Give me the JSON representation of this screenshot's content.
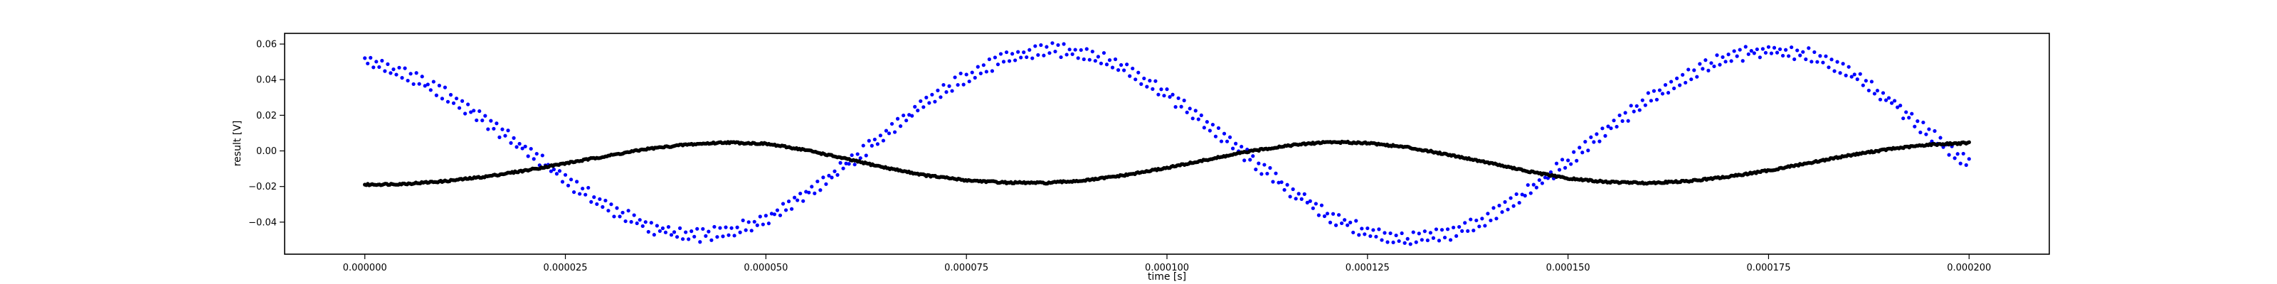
{
  "chart_data": {
    "type": "scatter",
    "title": "",
    "xlabel": "time [s]",
    "ylabel": "result [V]",
    "xlim": [
      -1e-05,
      0.00021
    ],
    "ylim": [
      -0.058,
      0.066
    ],
    "xticks": [
      "0.000000",
      "0.000025",
      "0.000050",
      "0.000075",
      "0.000100",
      "0.000125",
      "0.000150",
      "0.000175",
      "0.000200"
    ],
    "xtick_values": [
      0,
      2.5e-05,
      5e-05,
      7.5e-05,
      0.0001,
      0.000125,
      0.00015,
      0.000175,
      0.0002
    ],
    "yticks": [
      "0.06",
      "0.04",
      "0.02",
      "0.00",
      "−0.02",
      "−0.04"
    ],
    "ytick_values": [
      0.06,
      0.04,
      0.02,
      0.0,
      -0.02,
      -0.04
    ],
    "grid": false,
    "legend": "none",
    "series": [
      {
        "color": "#0000ff",
        "marker": "small dots, two interleaved bands",
        "x": [
          0,
          5e-06,
          1e-05,
          1.5e-05,
          2e-05,
          2.5e-05,
          3e-05,
          3.5e-05,
          4e-05,
          4.5e-05,
          5e-05,
          5.5e-05,
          6e-05,
          6.5e-05,
          7e-05,
          7.5e-05,
          8e-05,
          8.5e-05,
          9e-05,
          9.5e-05,
          0.0001,
          0.000105,
          0.00011,
          0.000115,
          0.00012,
          0.000125,
          0.00013,
          0.000135,
          0.00014,
          0.000145,
          0.00015,
          0.000155,
          0.00016,
          0.000165,
          0.00017,
          0.000175,
          0.00018,
          0.000185,
          0.00019,
          0.000195,
          0.0002
        ],
        "y": [
          0.051,
          0.043,
          0.032,
          0.017,
          0.001,
          -0.016,
          -0.031,
          -0.042,
          -0.048,
          -0.046,
          -0.038,
          -0.024,
          -0.008,
          0.01,
          0.027,
          0.042,
          0.052,
          0.057,
          0.055,
          0.046,
          0.032,
          0.015,
          -0.003,
          -0.021,
          -0.036,
          -0.046,
          -0.05,
          -0.047,
          -0.038,
          -0.023,
          -0.006,
          0.012,
          0.029,
          0.043,
          0.053,
          0.057,
          0.054,
          0.044,
          0.029,
          0.01,
          -0.008
        ]
      },
      {
        "color": "#000000",
        "marker": "small dots, dense trace",
        "x": [
          0,
          5e-06,
          1e-05,
          1.5e-05,
          2e-05,
          2.5e-05,
          3e-05,
          3.5e-05,
          4e-05,
          4.5e-05,
          5e-05,
          5.5e-05,
          6e-05,
          6.5e-05,
          7e-05,
          7.5e-05,
          8e-05,
          8.5e-05,
          9e-05,
          9.5e-05,
          0.0001,
          0.000105,
          0.00011,
          0.000115,
          0.00012,
          0.000125,
          0.00013,
          0.000135,
          0.00014,
          0.000145,
          0.00015,
          0.000155,
          0.00016,
          0.000165,
          0.00017,
          0.000175,
          0.00018,
          0.000185,
          0.00019,
          0.000195,
          0.0002
        ],
        "y": [
          -0.019,
          -0.0185,
          -0.017,
          -0.0145,
          -0.011,
          -0.007,
          -0.003,
          0.001,
          0.0035,
          0.0048,
          0.004,
          0.0005,
          -0.0045,
          -0.0095,
          -0.0138,
          -0.0165,
          -0.0178,
          -0.018,
          -0.0165,
          -0.0135,
          -0.0095,
          -0.005,
          -0.0005,
          0.003,
          0.005,
          0.0045,
          0.002,
          -0.002,
          -0.0065,
          -0.0115,
          -0.0155,
          -0.0175,
          -0.018,
          -0.017,
          -0.0145,
          -0.011,
          -0.0068,
          -0.0025,
          0.001,
          0.0035,
          0.0045
        ]
      }
    ]
  }
}
